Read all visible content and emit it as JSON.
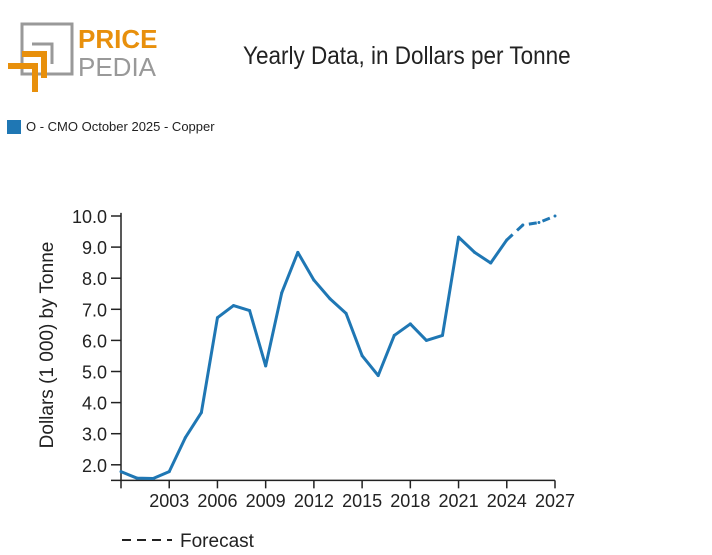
{
  "logo": {
    "line1": "PRICE",
    "line2": "PEDIA"
  },
  "chart_data": {
    "type": "line",
    "title": "Yearly Data, in Dollars per Tonne",
    "ylabel": "Dollars (1 000) by Tonne",
    "xlabel": "",
    "legend": [
      {
        "label": "O - CMO October 2025 - Copper",
        "color": "#1f77b4"
      }
    ],
    "forecast_label": "Forecast",
    "x": [
      2000,
      2001,
      2002,
      2003,
      2004,
      2005,
      2006,
      2007,
      2008,
      2009,
      2010,
      2011,
      2012,
      2013,
      2014,
      2015,
      2016,
      2017,
      2018,
      2019,
      2020,
      2021,
      2022,
      2023,
      2024,
      2025,
      2026,
      2027
    ],
    "values": [
      1.78,
      1.57,
      1.56,
      1.78,
      2.87,
      3.68,
      6.73,
      7.12,
      6.96,
      5.18,
      7.53,
      8.83,
      7.94,
      7.34,
      6.87,
      5.51,
      4.87,
      6.16,
      6.53,
      6.0,
      6.16,
      9.32,
      8.83,
      8.49,
      9.23,
      9.71,
      9.79,
      10.0
    ],
    "forecast_from": 2024,
    "xlim": [
      2000,
      2027
    ],
    "ylim": [
      1.5,
      10.1
    ],
    "xticks": [
      "2003",
      "2006",
      "2009",
      "2012",
      "2015",
      "2018",
      "2021",
      "2024",
      "2027"
    ],
    "yticks": [
      "2.0",
      "3.0",
      "4.0",
      "5.0",
      "6.0",
      "7.0",
      "8.0",
      "9.0",
      "10.0"
    ],
    "grid": false
  }
}
